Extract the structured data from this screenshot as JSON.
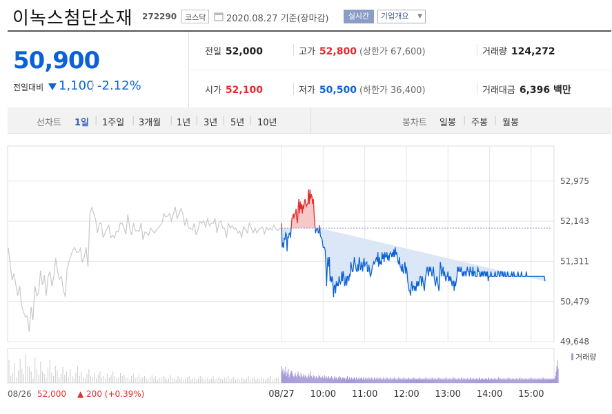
{
  "header": {
    "company": "이녹스첨단소재",
    "code": "272290",
    "market": "코스닥",
    "date": "2020.08.27 기준(장마감)",
    "realtime_label": "실시간",
    "overview_label": "기업개요"
  },
  "summary": {
    "price": "50,900",
    "change_label": "전일대비",
    "change_value": "1,100",
    "change_rate": "-2.12%",
    "prev_close_label": "전일",
    "prev_close": "52,000",
    "high_label": "고가",
    "high": "52,800",
    "upper_limit": "(상한가 67,600)",
    "volume_label": "거래량",
    "volume": "124,272",
    "open_label": "시가",
    "open": "52,100",
    "low_label": "저가",
    "low": "50,500",
    "lower_limit": "(하한가 36,400)",
    "amount_label": "거래대금",
    "amount": "6,396 백만"
  },
  "tabs": {
    "line_label": "선차트",
    "periods": [
      "1일",
      "1주일",
      "3개월",
      "1년",
      "3년",
      "5년",
      "10년"
    ],
    "active_period": "1일",
    "candle_label": "봉차트",
    "candles": [
      "일봉",
      "주봉",
      "월봉"
    ]
  },
  "colors": {
    "up": "#e52a2a",
    "down": "#0b61d6",
    "prev_day": "#c8c8c8",
    "volume": "#a598d8"
  },
  "chart_data": {
    "type": "line",
    "ylim": [
      49648,
      53500
    ],
    "y_ticks": [
      "52,975",
      "52,143",
      "51,311",
      "50,479",
      "49,648"
    ],
    "y_tick_values": [
      52975,
      52143,
      51311,
      50479,
      49648
    ],
    "x_ticks": [
      "08/27",
      "10:00",
      "11:00",
      "12:00",
      "13:00",
      "14:00",
      "15:00"
    ],
    "x_tick_minutes": [
      0,
      60,
      120,
      180,
      240,
      300,
      360
    ],
    "reference_value": 52000,
    "prev_day_label": "08/26",
    "prev_day_close": "52,000",
    "prev_day_change": "▲ 200 (+0.39%)",
    "volume_label": "거래량",
    "prev_day_series": [
      51590,
      51250,
      50920,
      51060,
      50820,
      50600,
      50800,
      50400,
      50260,
      50160,
      50180,
      49850,
      50370,
      50090,
      50800,
      50600,
      50660,
      51120,
      50820,
      51030,
      50600,
      51000,
      51100,
      50800,
      51000,
      51380,
      51100,
      50940,
      51000,
      50720,
      50580,
      51160,
      51300,
      51430,
      51540,
      51600,
      51500,
      51500,
      51580,
      51300,
      51400,
      51600,
      51200,
      52300,
      52420,
      52300,
      52180,
      51900,
      52100,
      52100,
      51800,
      51900,
      51990,
      52060,
      51800,
      51850,
      51800,
      51940,
      51920,
      52100,
      52100,
      52000,
      51870,
      52280,
      52000,
      51860,
      52100,
      51940,
      51950,
      51930,
      52100,
      51760,
      51920,
      51900,
      51850,
      52000,
      51950,
      51900,
      51950,
      52000,
      52050,
      52100,
      52300,
      52230,
      52250,
      52300,
      52150,
      52290,
      52440,
      52200,
      52300,
      52400,
      52300,
      52050,
      52200,
      52000,
      52000,
      51960,
      52100,
      51860,
      51970,
      52140,
      52100,
      52150,
      52020,
      52200,
      52050,
      52100,
      52100,
      52200,
      51900,
      52100,
      52150,
      52000,
      52000,
      51800,
      52100,
      52000,
      52050,
      51980,
      52000,
      51900,
      51940,
      51800,
      52030,
      51970,
      51900,
      52100,
      52010,
      51900,
      52000,
      51900,
      51970,
      52000,
      52020,
      51880,
      52020,
      51960,
      52000,
      51960,
      52060,
      51990,
      51950,
      51990,
      52000
    ],
    "intraday_minutes": [
      0,
      1,
      2,
      3,
      4,
      5,
      6,
      7,
      8,
      9,
      10,
      11,
      12,
      13,
      14,
      15,
      16,
      17,
      18,
      19,
      20,
      21,
      22,
      23,
      24,
      25,
      26,
      27,
      28,
      29,
      30,
      31,
      32,
      33,
      34,
      35,
      36,
      37,
      38,
      39,
      40,
      41,
      42,
      43,
      44,
      45,
      46,
      47,
      48,
      49,
      50,
      51,
      52,
      53,
      54,
      55,
      56,
      57,
      58,
      59,
      60,
      61,
      62,
      63,
      64,
      65,
      66,
      67,
      68,
      69,
      70,
      71,
      72,
      73,
      74,
      75,
      76,
      77,
      78,
      79,
      80,
      81,
      82,
      83,
      84,
      85,
      86,
      87,
      88,
      89,
      90,
      91,
      92,
      93,
      94,
      95,
      96,
      97,
      98,
      99,
      100,
      101,
      102,
      103,
      104,
      105,
      106,
      107,
      108,
      109,
      110,
      111,
      112,
      113,
      114,
      115,
      116,
      117,
      118,
      119,
      120,
      121,
      122,
      123,
      124,
      125,
      126,
      127,
      128,
      129,
      130,
      131,
      132,
      133,
      134,
      135,
      136,
      137,
      138,
      139,
      140,
      141,
      142,
      143,
      144,
      145,
      146,
      147,
      148,
      149,
      150,
      151,
      152,
      153,
      154,
      155,
      156,
      157,
      158,
      159,
      160,
      161,
      162,
      163,
      164,
      165,
      166,
      167,
      168,
      169,
      170,
      171,
      172,
      173,
      174,
      175,
      176,
      177,
      178,
      179,
      180,
      181,
      182,
      183,
      184,
      185,
      186,
      187,
      188,
      189,
      190,
      191,
      192,
      193,
      194,
      195,
      196,
      197,
      198,
      199,
      200,
      201,
      202,
      203,
      204,
      205,
      206,
      207,
      208,
      209,
      210,
      211,
      212,
      213,
      214,
      215,
      216,
      217,
      218,
      219,
      220,
      221,
      222,
      223,
      224,
      225,
      226,
      227,
      228,
      229,
      230,
      231,
      232,
      233,
      234,
      235,
      236,
      237,
      238,
      239,
      240,
      241,
      242,
      243,
      244,
      245,
      246,
      247,
      248,
      249,
      250,
      251,
      252,
      253,
      254,
      255,
      256,
      257,
      258,
      259,
      260,
      261,
      262,
      263,
      264,
      265,
      266,
      267,
      268,
      269,
      270,
      271,
      272,
      273,
      274,
      275,
      276,
      277,
      278,
      279,
      280,
      281,
      282,
      283,
      284,
      285,
      286,
      287,
      288,
      289,
      290,
      291,
      292,
      293,
      294,
      295,
      296,
      297,
      298,
      299,
      300,
      301,
      302,
      303,
      304,
      305,
      306,
      307,
      308,
      309,
      310,
      311,
      312,
      313,
      314,
      315,
      316,
      317,
      318,
      319,
      320,
      321,
      322,
      323,
      324,
      325,
      326,
      327,
      328,
      329,
      330,
      331,
      332,
      333,
      334,
      335,
      336,
      337,
      338,
      339,
      340,
      341,
      342,
      343,
      344,
      345,
      346,
      347,
      348,
      349,
      350,
      351,
      352,
      353,
      354,
      355,
      356,
      357,
      358,
      359,
      360,
      361,
      362,
      363,
      364,
      365,
      366,
      367,
      368,
      369,
      370,
      371,
      372,
      373,
      374,
      375,
      376,
      377,
      378,
      379,
      380,
      381,
      382,
      383,
      384,
      385,
      386,
      387,
      388,
      389,
      390
    ],
    "intraday_series": [
      52100,
      51600,
      51700,
      51590,
      51800,
      51760,
      51900,
      51870,
      51520,
      51810,
      51800,
      51890,
      51900,
      51800,
      52000,
      52200,
      52200,
      52300,
      52200,
      52290,
      52290,
      52400,
      52200,
      52100,
      52400,
      52600,
      52300,
      52550,
      52390,
      52500,
      52300,
      52480,
      52400,
      52550,
      52600,
      52500,
      52450,
      52500,
      52500,
      52800,
      52500,
      52800,
      52600,
      52700,
      52650,
      52500,
      52600,
      52300,
      52100,
      51900,
      51950,
      52000,
      52000,
      51900,
      51900,
      52060,
      51840,
      51810,
      51800,
      51720,
      51600,
      51600,
      51600,
      51540,
      51240,
      50800,
      51200,
      51400,
      51200,
      51400,
      50900,
      51000,
      50880,
      51000,
      50900,
      50570,
      50800,
      50820,
      50650,
      50900,
      50800,
      50850,
      50800,
      51000,
      50900,
      50850,
      50900,
      51100,
      50900,
      51110,
      51000,
      50800,
      50850,
      51000,
      50810,
      51000,
      51000,
      50900,
      51030,
      51000,
      51300,
      51200,
      51100,
      51100,
      51230,
      51400,
      51280,
      51200,
      51110,
      51100,
      51250,
      51110,
      51400,
      51300,
      51130,
      51200,
      51300,
      51100,
      51250,
      51380,
      51200,
      51250,
      51290,
      51300,
      51100,
      51100,
      51240,
      51130,
      51000,
      51030,
      51100,
      51200,
      51240,
      51300,
      51260,
      51300,
      51350,
      51400,
      51300,
      51500,
      51200,
      51400,
      51250,
      51300,
      51240,
      51500,
      51360,
      51460,
      51300,
      51500,
      51400,
      51400,
      51500,
      51340,
      51440,
      51320,
      51460,
      51500,
      51470,
      51400,
      51500,
      51400,
      51560,
      51400,
      51600,
      51450,
      51500,
      51400,
      51300,
      51250,
      51400,
      51200,
      51200,
      51100,
      51260,
      51100,
      51070,
      51200,
      51300,
      51050,
      51200,
      51100,
      50900,
      50800,
      50700,
      50700,
      50600,
      50800,
      50900,
      50700,
      50800,
      50800,
      50700,
      50800,
      50700,
      50900,
      50790,
      50900,
      50800,
      50950,
      51000,
      50990,
      50800,
      51000,
      50900,
      50800,
      50700,
      50900,
      51000,
      51100,
      51200,
      51100,
      51000,
      51200,
      51100,
      51200,
      51090,
      51000,
      51100,
      51200,
      51000,
      50900,
      50800,
      50900,
      51000,
      50900,
      50800,
      50700,
      50900,
      51300,
      51200,
      51000,
      51100,
      51200,
      51000,
      51100,
      51000,
      50900,
      51000,
      51000,
      51100,
      50900,
      51000,
      50900,
      51000,
      50900,
      50800,
      50900,
      50900,
      50700,
      50900,
      50800,
      50900,
      51000,
      51200,
      51100,
      51200,
      51100,
      51100,
      51200,
      51100,
      51000,
      51100,
      51000,
      51100,
      51100,
      51000,
      51100,
      51200,
      51100,
      51100,
      51000,
      51200,
      51100,
      51100,
      51000,
      51200,
      51000,
      51100,
      51100,
      51000,
      51000,
      51000,
      51200,
      51100,
      51100,
      51000,
      51000,
      51100,
      51000,
      51100,
      51000,
      51100,
      51100,
      51000,
      51100,
      51000,
      51100,
      50900,
      51000,
      51000,
      51000,
      51100,
      51000,
      51000,
      51000,
      51000,
      51000,
      51100,
      51000,
      51000,
      51000,
      51100,
      51100,
      51000,
      51000,
      51100,
      51100,
      51000,
      51100,
      51000,
      51000,
      51100,
      51000,
      51000,
      51000,
      51100,
      51000,
      51000,
      51000,
      51000,
      51000,
      51100,
      51000,
      51000,
      51100,
      51000,
      51000,
      51000,
      51000,
      51000,
      51100,
      51000,
      51000,
      51000,
      51000,
      51100,
      51000,
      51000,
      51000,
      51000,
      51000,
      51000,
      51100,
      51000,
      51000,
      51000,
      51000,
      51000,
      51000,
      51000,
      51000,
      51000,
      51000,
      51000,
      51000,
      51000,
      51000,
      51000,
      51000,
      51000,
      51000,
      51000,
      51000,
      51000,
      51000,
      51000,
      51000,
      51000,
      51000,
      50900
    ],
    "prev_day_volume": [
      40,
      12,
      18,
      35,
      10,
      22,
      42,
      25,
      15,
      50,
      30,
      28,
      20,
      8,
      45,
      24,
      14,
      38,
      20,
      16,
      10,
      26,
      40,
      18,
      12,
      30,
      22,
      10,
      16,
      28,
      14,
      20,
      10,
      24,
      12,
      8,
      18,
      30,
      12,
      20,
      10,
      8,
      16,
      24,
      12,
      10,
      18,
      8,
      14,
      20,
      10,
      12,
      8,
      16,
      10,
      14,
      20,
      12,
      8,
      10,
      18,
      12,
      14,
      8,
      10,
      6,
      12,
      16,
      8,
      10,
      14,
      8,
      10,
      12,
      8,
      6,
      10,
      14,
      8,
      12,
      6,
      10,
      8,
      12,
      10,
      6,
      8,
      14,
      10,
      8,
      6,
      12,
      8,
      10,
      6,
      8,
      10,
      12,
      6,
      8,
      10,
      6,
      8,
      12,
      10,
      6,
      8,
      10,
      6,
      8,
      12,
      6,
      8,
      10,
      8,
      6,
      10,
      8,
      12,
      6,
      8,
      10,
      6,
      8,
      6,
      10,
      8,
      6,
      8,
      12,
      6,
      8,
      10,
      6,
      8,
      6,
      10,
      8,
      6,
      8,
      10,
      12,
      6,
      8,
      10,
      8
    ],
    "intraday_volume": [
      30,
      20,
      25,
      15,
      22,
      18,
      28,
      12,
      20,
      16,
      24,
      10,
      14,
      18,
      22,
      20,
      16,
      12,
      10,
      14,
      18,
      12,
      10,
      16,
      20,
      14,
      12,
      10,
      18,
      14,
      10,
      12,
      16,
      10,
      14,
      12,
      10,
      8,
      12,
      16,
      10,
      14,
      20,
      12,
      10,
      8,
      14,
      12,
      10,
      8,
      12,
      10,
      8,
      10,
      14,
      12,
      10,
      8,
      10,
      12,
      8,
      10,
      14,
      8,
      12,
      10,
      8,
      10,
      12,
      8,
      10,
      8,
      12,
      10,
      8,
      6,
      10,
      12,
      8,
      10,
      8,
      6,
      10,
      8,
      12,
      10,
      8,
      6,
      10,
      8,
      10,
      8,
      6,
      10,
      8,
      12,
      8,
      6,
      10,
      8,
      6,
      10,
      8,
      6,
      8,
      10,
      8,
      6,
      10,
      8,
      6,
      8,
      10,
      6,
      8,
      10,
      8,
      6,
      10,
      8,
      6,
      8,
      10,
      6,
      8,
      6,
      10,
      8,
      6,
      8,
      10,
      6,
      8,
      6,
      10,
      8,
      6,
      8,
      10,
      6,
      8,
      6,
      10,
      8,
      6,
      8,
      6,
      10,
      8,
      6,
      8,
      6,
      10,
      8,
      6,
      8,
      6,
      10,
      8,
      6,
      8,
      6,
      8,
      10,
      6,
      8,
      6,
      8,
      6,
      10,
      8,
      6,
      8,
      6,
      8,
      6,
      10,
      8,
      6,
      8,
      6,
      8,
      6,
      10,
      8,
      6,
      8,
      6,
      8,
      6,
      8,
      10,
      6,
      8,
      6,
      8,
      6,
      8,
      6,
      10,
      8,
      6,
      8,
      6,
      8,
      6,
      8,
      6,
      10,
      8,
      6,
      8,
      6,
      8,
      6,
      8,
      6,
      10,
      8,
      6,
      8,
      6,
      8,
      6,
      8,
      6,
      8,
      10,
      6,
      8,
      6,
      8,
      6,
      8,
      6,
      8,
      6,
      10,
      8,
      6,
      8,
      6,
      8,
      6,
      8,
      6,
      8,
      6,
      10,
      8,
      6,
      8,
      6,
      8,
      6,
      8,
      6,
      8,
      6,
      8,
      10,
      6,
      8,
      6,
      8,
      6,
      8,
      6,
      8,
      6,
      8,
      6,
      10,
      8,
      6,
      8,
      6,
      8,
      6,
      8,
      6,
      8,
      6,
      8,
      6,
      10,
      8,
      6,
      8,
      6,
      8,
      6,
      8,
      6,
      8,
      6,
      8,
      6,
      8,
      10,
      6,
      8,
      6,
      8,
      6,
      8,
      6,
      8,
      6,
      8,
      6,
      8,
      6,
      10,
      8,
      6,
      8,
      6,
      8,
      6,
      8,
      6,
      8,
      6,
      8,
      6,
      8,
      6,
      10,
      8,
      6,
      8,
      6,
      8,
      6,
      8,
      6,
      8,
      6,
      8,
      6,
      8,
      6,
      8,
      10,
      6,
      8,
      6,
      8,
      6,
      8,
      6,
      8,
      6,
      8,
      6,
      8,
      6,
      8,
      6,
      10,
      8,
      6,
      8,
      6,
      8,
      6,
      8,
      6,
      8,
      6,
      8,
      6,
      8,
      6,
      8,
      6,
      10,
      8,
      6,
      8,
      6,
      8,
      6,
      8,
      6,
      8,
      6,
      8,
      6,
      8,
      6,
      8,
      6,
      8,
      12,
      20,
      30,
      40,
      25
    ]
  }
}
